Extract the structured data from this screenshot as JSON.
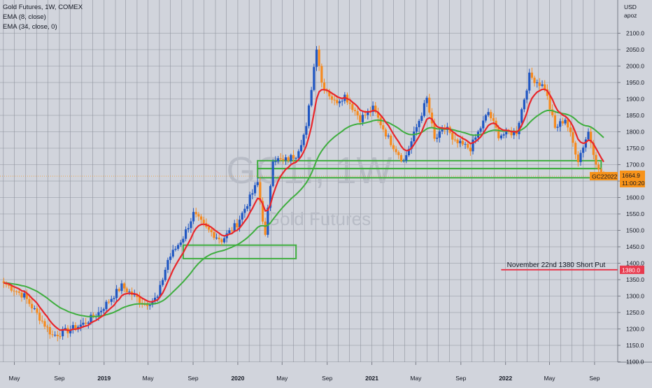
{
  "header": {
    "title": "Gold Futures, 1W, COMEX",
    "indicators": [
      "EMA (8, close)",
      "EMA (34, close, 0)"
    ],
    "currency": "USD",
    "scale_mode": "apoz"
  },
  "watermark": {
    "symbol": "GC1!, 1W",
    "description": "Gold Futures"
  },
  "colors": {
    "background": "#d1d4dc",
    "grid": "#8f939e",
    "up": "#2157c2",
    "down": "#f68a1f",
    "ema8": "#e8262b",
    "ema34": "#3fae3f",
    "zone": "#3fae3f",
    "short_put": "#e83a4e",
    "price_tag": "#f7931a"
  },
  "chart_data": {
    "type": "candlestick",
    "title": "Gold Futures, 1W, COMEX",
    "ylim": [
      1080,
      2120
    ],
    "y_ticks": [
      1100,
      1150,
      1200,
      1250,
      1300,
      1350,
      1400,
      1450,
      1500,
      1550,
      1600,
      1650,
      1700,
      1750,
      1800,
      1850,
      1900,
      1950,
      2000,
      2050,
      2100
    ],
    "x_ticks": [
      "May",
      "Sep",
      "2019",
      "May",
      "Sep",
      "2020",
      "May",
      "Sep",
      "2021",
      "May",
      "Sep",
      "2022",
      "May",
      "Sep"
    ],
    "anchors": [
      [
        "2018-04-02",
        1340
      ],
      [
        "2018-05-28",
        1300
      ],
      [
        "2018-08-13",
        1180
      ],
      [
        "2018-09-24",
        1195
      ],
      [
        "2018-11-05",
        1215
      ],
      [
        "2018-12-17",
        1250
      ],
      [
        "2019-02-18",
        1330
      ],
      [
        "2019-04-22",
        1275
      ],
      [
        "2019-05-27",
        1295
      ],
      [
        "2019-06-24",
        1410
      ],
      [
        "2019-08-05",
        1480
      ],
      [
        "2019-09-02",
        1550
      ],
      [
        "2019-10-07",
        1505
      ],
      [
        "2019-11-18",
        1470
      ],
      [
        "2019-12-30",
        1520
      ],
      [
        "2020-02-24",
        1645
      ],
      [
        "2020-03-16",
        1480
      ],
      [
        "2020-04-06",
        1720
      ],
      [
        "2020-05-04",
        1710
      ],
      [
        "2020-06-08",
        1730
      ],
      [
        "2020-07-06",
        1810
      ],
      [
        "2020-08-03",
        2060
      ],
      [
        "2020-08-17",
        1950
      ],
      [
        "2020-09-21",
        1890
      ],
      [
        "2020-10-19",
        1910
      ],
      [
        "2020-11-30",
        1840
      ],
      [
        "2021-01-04",
        1870
      ],
      [
        "2021-02-15",
        1780
      ],
      [
        "2021-03-29",
        1710
      ],
      [
        "2021-04-19",
        1770
      ],
      [
        "2021-05-31",
        1900
      ],
      [
        "2021-06-21",
        1775
      ],
      [
        "2021-07-26",
        1815
      ],
      [
        "2021-08-09",
        1770
      ],
      [
        "2021-09-27",
        1750
      ],
      [
        "2021-11-15",
        1860
      ],
      [
        "2021-12-13",
        1790
      ],
      [
        "2022-01-31",
        1800
      ],
      [
        "2022-03-07",
        1970
      ],
      [
        "2022-04-18",
        1935
      ],
      [
        "2022-05-16",
        1810
      ],
      [
        "2022-06-13",
        1840
      ],
      [
        "2022-07-18",
        1715
      ],
      [
        "2022-08-15",
        1800
      ],
      [
        "2022-09-12",
        1680
      ],
      [
        "2022-09-26",
        1664.9
      ]
    ],
    "series": [
      {
        "name": "EMA (8, close)",
        "period": 8
      },
      {
        "name": "EMA (34, close, 0)",
        "period": 34
      }
    ],
    "zones": [
      {
        "from": "2019-08-05",
        "to": "2020-06-08",
        "low": 1414,
        "high": 1455
      },
      {
        "from": "2020-02-24",
        "to": "2022-09-19",
        "low": 1688,
        "high": 1712
      },
      {
        "from": "2020-02-24",
        "to": "2022-09-19",
        "low": 1660,
        "high": 1688
      }
    ],
    "annotations": [
      {
        "text": "November 22nd 1380 Short Put",
        "price": 1380
      }
    ],
    "price_labels": {
      "short_put": "1380.0",
      "symbol": "GC22022",
      "last": "1664.9",
      "countdown": "11:00:20"
    }
  }
}
